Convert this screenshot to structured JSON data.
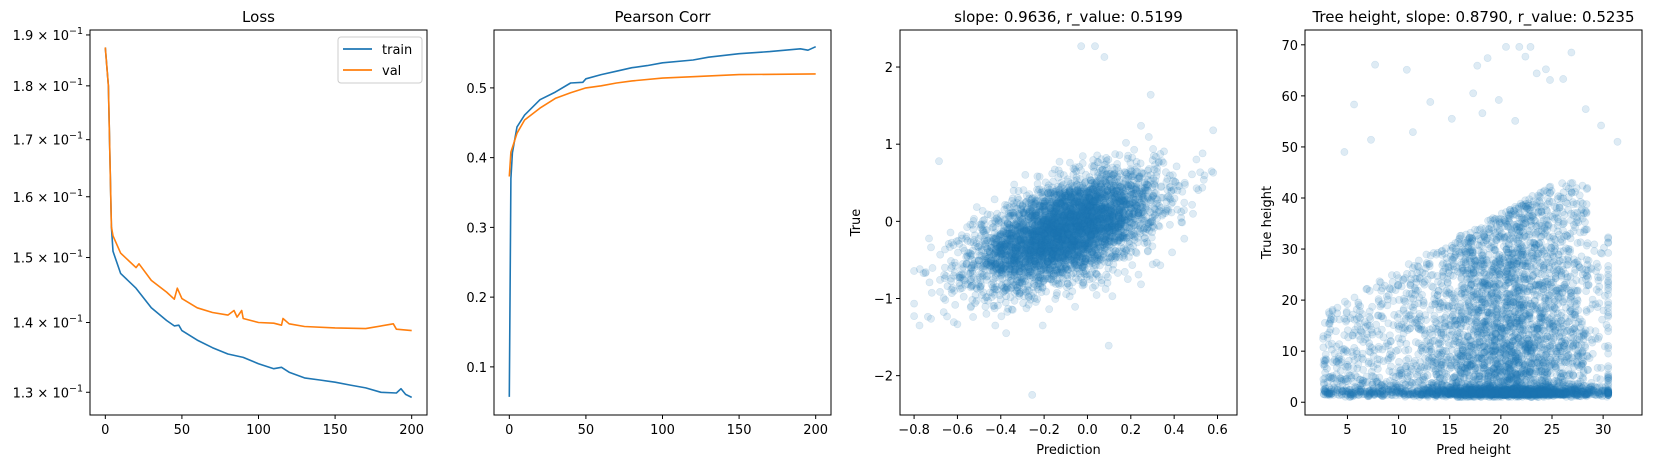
{
  "chart_data": [
    {
      "type": "line",
      "title": "Loss",
      "xlabel": "",
      "ylabel": "",
      "xlim": [
        -10,
        210
      ],
      "ylim": [
        0.1269,
        0.191
      ],
      "yscale": "log",
      "grid": false,
      "legend": "top-right",
      "x_ticks": [
        "0",
        "50",
        "100",
        "150",
        "200"
      ],
      "y_ticks": [
        {
          "value": 0.19,
          "mant": "1.9",
          "base": "10",
          "exp": "−1"
        },
        {
          "value": 0.18,
          "mant": "1.8",
          "base": "10",
          "exp": "−1"
        },
        {
          "value": 0.17,
          "mant": "1.7",
          "base": "10",
          "exp": "−1"
        },
        {
          "value": 0.16,
          "mant": "1.6",
          "base": "10",
          "exp": "−1"
        },
        {
          "value": 0.15,
          "mant": "1.5",
          "base": "10",
          "exp": "−1"
        },
        {
          "value": 0.14,
          "mant": "1.4",
          "base": "10",
          "exp": "−1"
        },
        {
          "value": 0.13,
          "mant": "1.3",
          "base": "10",
          "exp": "−1"
        }
      ],
      "series": [
        {
          "name": "train",
          "color": "#1f77b4",
          "x": [
            0,
            2,
            4,
            5,
            10,
            20,
            30,
            40,
            45,
            48,
            50,
            60,
            70,
            80,
            90,
            100,
            110,
            115,
            120,
            130,
            140,
            150,
            160,
            170,
            180,
            190,
            193,
            196,
            200
          ],
          "y": [
            0.1875,
            0.18,
            0.155,
            0.151,
            0.1475,
            0.1452,
            0.1422,
            0.1403,
            0.1395,
            0.1396,
            0.1388,
            0.1374,
            0.1363,
            0.1354,
            0.1349,
            0.134,
            0.1333,
            0.1335,
            0.1328,
            0.132,
            0.1317,
            0.1314,
            0.131,
            0.1306,
            0.13,
            0.1299,
            0.1305,
            0.1297,
            0.1293
          ]
        },
        {
          "name": "val",
          "color": "#ff7f0e",
          "x": [
            0,
            2,
            4,
            5,
            10,
            20,
            22,
            30,
            40,
            45,
            47,
            50,
            60,
            70,
            80,
            84,
            86,
            89,
            90,
            100,
            110,
            115,
            116,
            120,
            130,
            150,
            170,
            188,
            190,
            200
          ],
          "y": [
            0.1875,
            0.18,
            0.155,
            0.1535,
            0.1507,
            0.1484,
            0.149,
            0.1464,
            0.1446,
            0.1435,
            0.1452,
            0.1436,
            0.1422,
            0.1415,
            0.1411,
            0.1418,
            0.1408,
            0.1418,
            0.1406,
            0.14,
            0.1399,
            0.1396,
            0.1406,
            0.1398,
            0.1394,
            0.1392,
            0.1391,
            0.1398,
            0.139,
            0.1388
          ]
        }
      ]
    },
    {
      "type": "line",
      "title": "Pearson Corr",
      "xlabel": "",
      "ylabel": "",
      "xlim": [
        -10,
        210
      ],
      "ylim": [
        0.031,
        0.583
      ],
      "grid": false,
      "x_ticks": [
        "0",
        "50",
        "100",
        "150",
        "200"
      ],
      "y_ticks": [
        "0.1",
        "0.2",
        "0.3",
        "0.4",
        "0.5"
      ],
      "series": [
        {
          "color": "#1f77b4",
          "x": [
            0,
            1,
            2,
            5,
            10,
            20,
            30,
            40,
            48,
            50,
            60,
            70,
            80,
            90,
            100,
            120,
            130,
            150,
            170,
            190,
            195,
            200
          ],
          "y": [
            0.057,
            0.37,
            0.407,
            0.444,
            0.461,
            0.483,
            0.494,
            0.507,
            0.508,
            0.513,
            0.519,
            0.524,
            0.529,
            0.532,
            0.536,
            0.54,
            0.544,
            0.549,
            0.552,
            0.556,
            0.554,
            0.559
          ]
        },
        {
          "color": "#ff7f0e",
          "x": [
            0,
            1,
            5,
            10,
            20,
            30,
            40,
            50,
            60,
            70,
            80,
            100,
            120,
            150,
            200
          ],
          "y": [
            0.373,
            0.408,
            0.435,
            0.454,
            0.471,
            0.485,
            0.493,
            0.5,
            0.503,
            0.507,
            0.51,
            0.514,
            0.516,
            0.519,
            0.52
          ]
        }
      ]
    },
    {
      "type": "scatter",
      "title": "slope: 0.9636, r_value: 0.5199",
      "slope": 0.9636,
      "r_value": 0.5199,
      "xlabel": "Prediction",
      "ylabel": "True",
      "xlim": [
        -0.865,
        0.69
      ],
      "ylim": [
        -2.51,
        2.48
      ],
      "grid": false,
      "color": "#1f77b4",
      "alpha": 0.15,
      "x_ticks": [
        "−0.8",
        "−0.6",
        "−0.4",
        "−0.2",
        "0.0",
        "0.2",
        "0.4",
        "0.6"
      ],
      "x_tick_values": [
        -0.8,
        -0.6,
        -0.4,
        -0.2,
        0,
        0.2,
        0.4,
        0.6
      ],
      "y_ticks": [
        "−2",
        "−1",
        "0",
        "1",
        "2"
      ],
      "y_tick_values": [
        -2,
        -1,
        0,
        1,
        2
      ],
      "outliers": [
        [
          -0.029,
          2.27
        ],
        [
          0.035,
          2.27
        ],
        [
          0.078,
          2.13
        ],
        [
          -0.255,
          -2.25
        ],
        [
          0.098,
          -1.61
        ],
        [
          0.292,
          1.64
        ],
        [
          -0.685,
          0.78
        ],
        [
          -0.375,
          -1.45
        ]
      ]
    },
    {
      "type": "scatter",
      "title": "Tree height, slope: 0.8790, r_value: 0.5235",
      "slope": 0.879,
      "r_value": 0.5235,
      "xlabel": "Pred height",
      "ylabel": "True height",
      "xlim": [
        0.85,
        33.8
      ],
      "ylim": [
        -2.5,
        72.9
      ],
      "grid": false,
      "color": "#1f77b4",
      "alpha": 0.15,
      "x_ticks": [
        "5",
        "10",
        "15",
        "20",
        "25",
        "30"
      ],
      "x_tick_values": [
        5,
        10,
        15,
        20,
        25,
        30
      ],
      "y_ticks": [
        "0",
        "10",
        "20",
        "30",
        "40",
        "50",
        "60",
        "70"
      ],
      "y_tick_values": [
        0,
        10,
        20,
        30,
        40,
        50,
        60,
        70
      ],
      "outliers": [
        [
          7.7,
          66.1
        ],
        [
          10.8,
          65.1
        ],
        [
          5.65,
          58.3
        ],
        [
          20.5,
          69.6
        ],
        [
          21.8,
          69.6
        ],
        [
          22.9,
          69.6
        ],
        [
          26.9,
          68.5
        ],
        [
          18.7,
          67.4
        ],
        [
          17.7,
          65.9
        ],
        [
          22.4,
          67.7
        ],
        [
          24.8,
          63.1
        ],
        [
          26.1,
          63.3
        ],
        [
          23.5,
          64.4
        ],
        [
          24.4,
          65.2
        ],
        [
          17.3,
          60.5
        ],
        [
          19.8,
          59.2
        ],
        [
          13.1,
          58.8
        ],
        [
          28.3,
          57.4
        ],
        [
          11.4,
          52.9
        ],
        [
          4.7,
          49
        ],
        [
          7.3,
          51.4
        ],
        [
          15.2,
          55.5
        ],
        [
          18.2,
          56.6
        ],
        [
          29.8,
          54.2
        ],
        [
          31.4,
          51
        ],
        [
          21.4,
          55.1
        ]
      ]
    }
  ]
}
